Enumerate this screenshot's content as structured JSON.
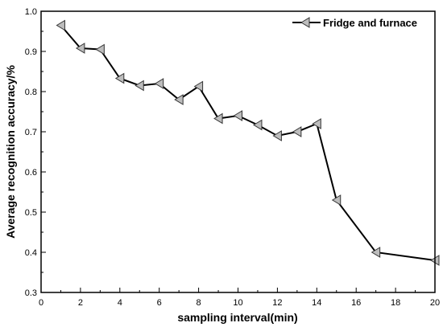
{
  "chart_data": {
    "type": "line",
    "xlabel": "sampling interval(min)",
    "ylabel": "Average recognition accuracy/%",
    "xlim": [
      0,
      20
    ],
    "ylim": [
      0.3,
      1.0
    ],
    "x_ticks": [
      0,
      2,
      4,
      6,
      8,
      10,
      12,
      14,
      16,
      18,
      20
    ],
    "y_ticks": [
      0.3,
      0.4,
      0.5,
      0.6,
      0.7,
      0.8,
      0.9,
      1.0
    ],
    "x_tick_labels": [
      "0",
      "2",
      "4",
      "6",
      "8",
      "10",
      "12",
      "14",
      "16",
      "18",
      "20"
    ],
    "y_tick_labels": [
      "0.3",
      "0.4",
      "0.5",
      "0.6",
      "0.7",
      "0.8",
      "0.9",
      "1.0"
    ],
    "grid": false,
    "legend_position": "top-right",
    "series": [
      {
        "name": "Fridge and furnace",
        "color": "#000000",
        "marker_color": "#bdbdbd",
        "marker": "left-triangle",
        "x": [
          1,
          2,
          3,
          4,
          5,
          6,
          7,
          8,
          9,
          10,
          11,
          12,
          13,
          14,
          15,
          17,
          20
        ],
        "y": [
          0.965,
          0.908,
          0.905,
          0.833,
          0.815,
          0.82,
          0.78,
          0.813,
          0.733,
          0.74,
          0.717,
          0.69,
          0.7,
          0.72,
          0.53,
          0.4,
          0.38
        ]
      }
    ]
  }
}
